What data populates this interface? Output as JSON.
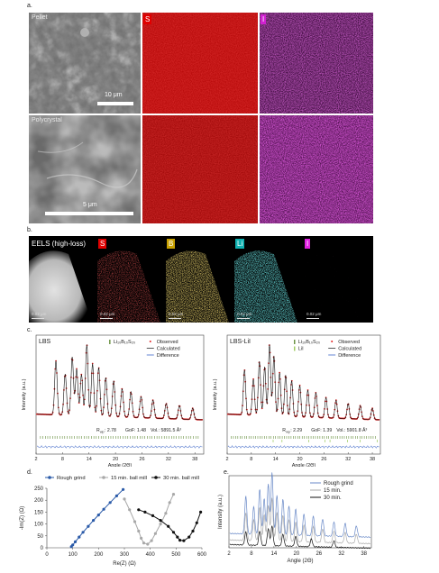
{
  "panel_a": {
    "label": "a.",
    "pellet_label": "Pellet",
    "polycrystal_label": "Polycrystal",
    "scale_pellet": "10 μm",
    "scale_polycrystal": "5 μm",
    "elements": [
      {
        "symbol": "S",
        "badge_color": "#e00000",
        "map_color": "#c80c0c"
      },
      {
        "symbol": "I",
        "badge_color": "#d020d0",
        "map_color": "#8a1e8a"
      }
    ]
  },
  "panel_b": {
    "label": "b.",
    "title": "EELS (high-loss)",
    "scale_text": "0.02 μm",
    "elements": [
      {
        "symbol": "S",
        "badge_color": "#e00000",
        "dot_color": "#e02020"
      },
      {
        "symbol": "B",
        "badge_color": "#c8a000",
        "dot_color": "#c9a22a"
      },
      {
        "symbol": "Li",
        "badge_color": "#10b0b0",
        "dot_color": "#2cc8c8"
      },
      {
        "symbol": "I",
        "badge_color": "#e020e0",
        "dot_color": "#b030b0"
      }
    ]
  },
  "panel_c": {
    "label": "c.",
    "left": {
      "title": "LBS",
      "legend": [
        "Li₁₀B₁₀S₂₀",
        "Observed",
        "Calculated",
        "Difference"
      ],
      "stats": [
        "R",
        "wp",
        ": 2.78",
        "GoF: 1.48",
        "Vol.: 5891.5 Å³"
      ],
      "xlabel": "Angle (2Θ)",
      "ylabel": "Intensity (a.u.)",
      "xticks": [
        "2",
        "8",
        "14",
        "20",
        "26",
        "32",
        "38"
      ]
    },
    "right": {
      "title": "LBS-LiI",
      "legend": [
        "Li₁₀B₁₀S₂₀",
        "LiI",
        "Observed",
        "Calculated",
        "Difference"
      ],
      "stats": [
        "R",
        "wp",
        ": 2.29",
        "GoF: 1.39",
        "Vol.: 5901.8 Å³"
      ],
      "xlabel": "Angle (2Θ)",
      "ylabel": "Intensity (a.u.)",
      "xticks": [
        "2",
        "8",
        "14",
        "20",
        "26",
        "32",
        "38"
      ]
    }
  },
  "panel_d": {
    "label": "d.",
    "xlabel": "Re(Z) (Ω)",
    "ylabel": "-Im(Z) (Ω)",
    "xticks": [
      "0",
      "100",
      "200",
      "300",
      "400",
      "500",
      "600"
    ],
    "yticks": [
      "0",
      "50",
      "100",
      "150",
      "200",
      "250"
    ],
    "legend": [
      "Rough grind",
      "15 min. ball mill",
      "30 min. ball mill"
    ]
  },
  "panel_e": {
    "label": "e.",
    "xlabel": "Angle (2Θ)",
    "ylabel": "Intensity (a.u.)",
    "xticks": [
      "2",
      "8",
      "14",
      "20",
      "26",
      "32",
      "38"
    ],
    "legend": [
      "Rough grind",
      "15 min.",
      "30 min."
    ]
  },
  "colors": {
    "observed": "#e02020",
    "calculated": "#111111",
    "difference": "#2050c0",
    "tick_green": "#4a7a1a",
    "rough_grind": "#2a5aa8",
    "ball_15": "#a8a8a8",
    "ball_30": "#111111",
    "e_rough": "#6a8ac8",
    "e_15": "#aaaaaa",
    "e_30": "#111111"
  },
  "chart_data": [
    {
      "type": "line",
      "name_ref": "panel_c_left",
      "xlabel": "Angle (2Θ)",
      "ylabel": "Intensity (a.u.)",
      "xlim": [
        2,
        40
      ],
      "peaks": [
        [
          6.5,
          0.72
        ],
        [
          8.6,
          0.55
        ],
        [
          10.2,
          0.78
        ],
        [
          11.2,
          0.62
        ],
        [
          12.3,
          0.55
        ],
        [
          13.5,
          0.95
        ],
        [
          14.8,
          0.7
        ],
        [
          16.2,
          0.65
        ],
        [
          17.8,
          0.52
        ],
        [
          19.6,
          0.48
        ],
        [
          21.5,
          0.38
        ],
        [
          23.5,
          0.34
        ],
        [
          25.8,
          0.28
        ],
        [
          28.5,
          0.24
        ],
        [
          31.5,
          0.2
        ],
        [
          34.5,
          0.18
        ],
        [
          37.5,
          0.15
        ]
      ]
    },
    {
      "type": "line",
      "name_ref": "panel_c_right",
      "xlabel": "Angle (2Θ)",
      "ylabel": "Intensity (a.u.)",
      "xlim": [
        2,
        40
      ],
      "peaks": [
        [
          6.3,
          0.6
        ],
        [
          8.5,
          0.48
        ],
        [
          10.0,
          0.72
        ],
        [
          11.3,
          0.65
        ],
        [
          12.5,
          0.95
        ],
        [
          13.6,
          0.8
        ],
        [
          15.0,
          0.58
        ],
        [
          16.5,
          0.55
        ],
        [
          18.0,
          0.48
        ],
        [
          20.0,
          0.42
        ],
        [
          22.0,
          0.36
        ],
        [
          24.0,
          0.33
        ],
        [
          26.5,
          0.27
        ],
        [
          29.0,
          0.24
        ],
        [
          32.0,
          0.2
        ],
        [
          35.0,
          0.18
        ],
        [
          38.0,
          0.15
        ]
      ]
    },
    {
      "type": "scatter",
      "name_ref": "panel_d",
      "xlabel": "Re(Z) (Ω)",
      "ylabel": "-Im(Z) (Ω)",
      "xlim": [
        0,
        600
      ],
      "ylim": [
        0,
        250
      ],
      "series": [
        {
          "name": "Rough grind",
          "points": [
            [
              95,
              5
            ],
            [
              100,
              12
            ],
            [
              110,
              25
            ],
            [
              125,
              45
            ],
            [
              140,
              65
            ],
            [
              160,
              90
            ],
            [
              180,
              115
            ],
            [
              200,
              138
            ],
            [
              220,
              162
            ],
            [
              245,
              190
            ],
            [
              270,
              218
            ],
            [
              295,
              245
            ]
          ]
        },
        {
          "name": "15 min. ball mill",
          "points": [
            [
              300,
              205
            ],
            [
              320,
              160
            ],
            [
              340,
              110
            ],
            [
              355,
              70
            ],
            [
              365,
              40
            ],
            [
              375,
              20
            ],
            [
              390,
              15
            ],
            [
              405,
              30
            ],
            [
              420,
              60
            ],
            [
              440,
              100
            ],
            [
              460,
              145
            ],
            [
              475,
              190
            ],
            [
              490,
              225
            ]
          ]
        },
        {
          "name": "30 min. ball mill",
          "points": [
            [
              355,
              160
            ],
            [
              380,
              150
            ],
            [
              410,
              135
            ],
            [
              440,
              115
            ],
            [
              470,
              90
            ],
            [
              490,
              65
            ],
            [
              505,
              45
            ],
            [
              515,
              32
            ],
            [
              530,
              30
            ],
            [
              550,
              45
            ],
            [
              565,
              70
            ],
            [
              580,
              105
            ],
            [
              595,
              150
            ]
          ]
        }
      ]
    },
    {
      "type": "line",
      "name_ref": "panel_e",
      "xlabel": "Angle (2Θ)",
      "ylabel": "Intensity (a.u.)",
      "xlim": [
        2,
        40
      ],
      "series": [
        {
          "name": "Rough grind",
          "peaks": [
            [
              6.5,
              0.58
            ],
            [
              8.6,
              0.42
            ],
            [
              10.2,
              0.7
            ],
            [
              11.4,
              0.55
            ],
            [
              12.5,
              0.78
            ],
            [
              13.5,
              0.95
            ],
            [
              14.8,
              0.6
            ],
            [
              16.4,
              0.55
            ],
            [
              18.0,
              0.45
            ],
            [
              19.8,
              0.4
            ],
            [
              22.0,
              0.33
            ],
            [
              24.5,
              0.3
            ],
            [
              27.0,
              0.26
            ],
            [
              30.0,
              0.22
            ],
            [
              33.0,
              0.2
            ],
            [
              36.0,
              0.17
            ]
          ],
          "base": 0.22
        },
        {
          "name": "15 min.",
          "peaks": [
            [
              6.5,
              0.42
            ],
            [
              8.6,
              0.32
            ],
            [
              10.2,
              0.52
            ],
            [
              11.4,
              0.4
            ],
            [
              12.5,
              0.55
            ],
            [
              13.5,
              0.66
            ],
            [
              14.8,
              0.44
            ],
            [
              16.4,
              0.4
            ],
            [
              18.0,
              0.34
            ],
            [
              19.8,
              0.3
            ],
            [
              22.0,
              0.26
            ],
            [
              24.5,
              0.24
            ],
            [
              27.0,
              0.21
            ],
            [
              30.0,
              0.18
            ],
            [
              33.0,
              0.16
            ],
            [
              36.0,
              0.14
            ]
          ],
          "base": 0.12
        },
        {
          "name": "30 min.",
          "peaks": [
            [
              6.5,
              0.2
            ],
            [
              10.2,
              0.22
            ],
            [
              12.5,
              0.26
            ],
            [
              13.5,
              0.3
            ],
            [
              16.4,
              0.18
            ],
            [
              19.8,
              0.15
            ],
            [
              24.0,
              0.12
            ],
            [
              30.0,
              0.1
            ]
          ],
          "base": 0.05
        }
      ]
    }
  ]
}
